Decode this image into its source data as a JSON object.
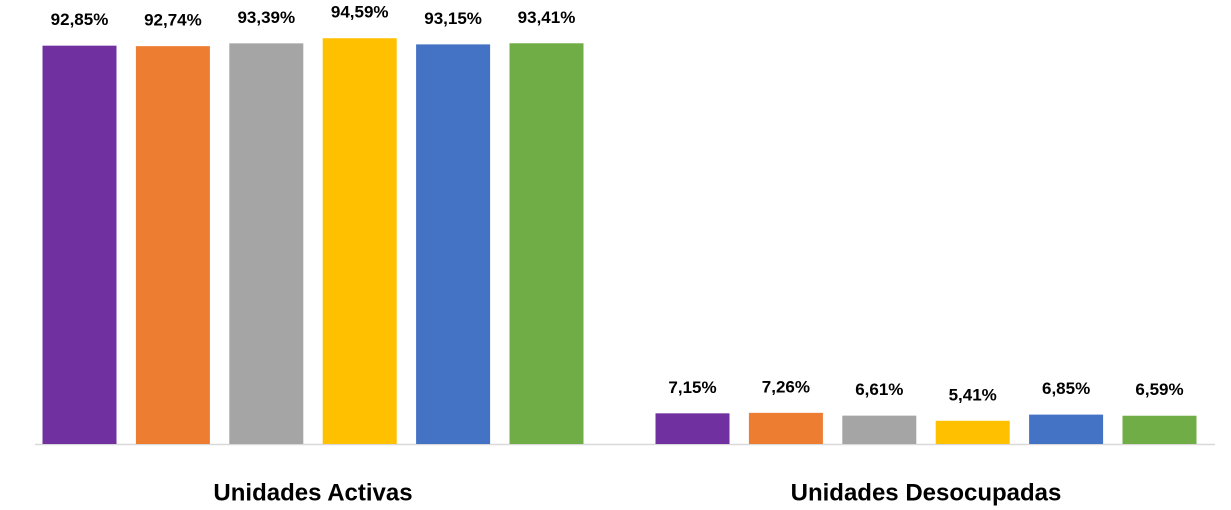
{
  "chart_data": {
    "type": "bar",
    "categories": [
      "Unidades Activas",
      "Unidades Desocupadas"
    ],
    "series": [
      {
        "color": "#7030a0",
        "values": [
          92.85,
          7.15
        ],
        "value_labels": [
          "92,85%",
          "7,15%"
        ]
      },
      {
        "color": "#ed7d31",
        "values": [
          92.74,
          7.26
        ],
        "value_labels": [
          "92,74%",
          "7,26%"
        ]
      },
      {
        "color": "#a5a5a5",
        "values": [
          93.39,
          6.61
        ],
        "value_labels": [
          "93,39%",
          "6,61%"
        ]
      },
      {
        "color": "#ffc000",
        "values": [
          94.59,
          5.41
        ],
        "value_labels": [
          "94,59%",
          "5,41%"
        ]
      },
      {
        "color": "#4472c4",
        "values": [
          93.15,
          6.85
        ],
        "value_labels": [
          "93,15%",
          "6,85%"
        ]
      },
      {
        "color": "#70ad47",
        "values": [
          93.41,
          6.59
        ],
        "value_labels": [
          "93,41%",
          "6,59%"
        ]
      }
    ],
    "ylim": [
      0,
      100
    ]
  }
}
